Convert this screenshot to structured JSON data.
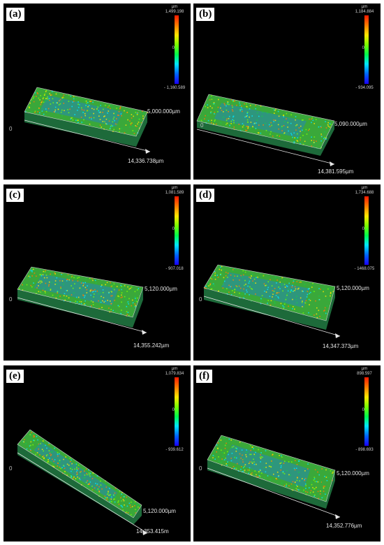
{
  "unit_label": "µm",
  "zero_label": "0",
  "origin_label": "0",
  "colors": {
    "high": "#ff1a00",
    "mid": "#00ff4c",
    "low": "#1a00ff",
    "surface": "#3aa83a",
    "center_patch": "#2a8f9a"
  },
  "panels": [
    {
      "label": "(a)",
      "max": "1,499.198",
      "min": "- 1,160.589",
      "y_dim": "5,000.000µm",
      "x_dim": "14,336.738µm"
    },
    {
      "label": "(b)",
      "max": "1,184.884",
      "min": "- 934.095",
      "y_dim": "5,090.000µm",
      "x_dim": "14,381.595µm"
    },
    {
      "label": "(c)",
      "max": "1,081.589",
      "min": "- 907.018",
      "y_dim": "5,120.000µm",
      "x_dim": "14,355.242µm"
    },
    {
      "label": "(d)",
      "max": "1,734.688",
      "min": "- 1468.075",
      "y_dim": "5,120.000µm",
      "x_dim": "14,347.373µm"
    },
    {
      "label": "(e)",
      "max": "1,079.834",
      "min": "- 939.612",
      "y_dim": "5,120.000µm",
      "x_dim": "14,353.415m"
    },
    {
      "label": "(f)",
      "max": "898.597",
      "min": "- 898.693",
      "y_dim": "5,120.000µm",
      "x_dim": "14,352.776µm"
    }
  ]
}
